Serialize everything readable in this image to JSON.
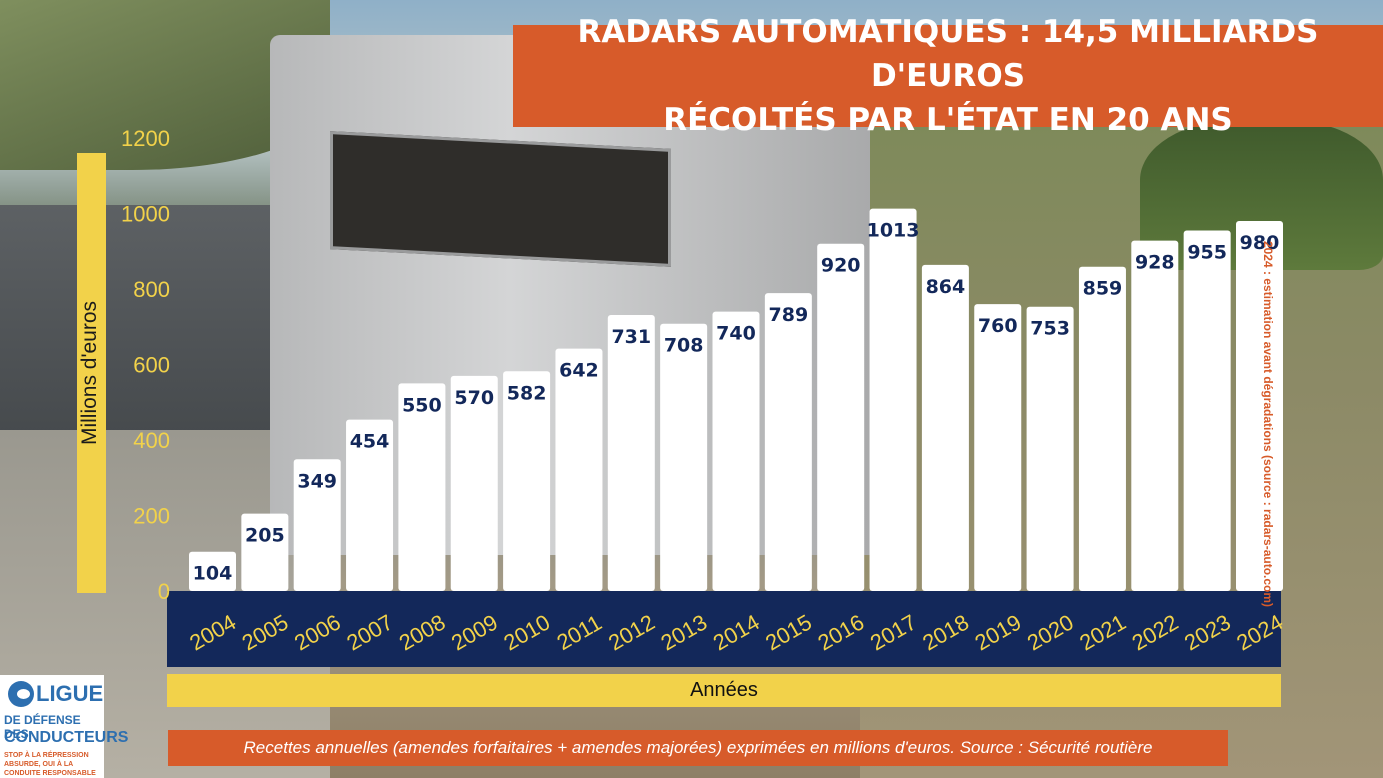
{
  "title": {
    "line1": "RADARS AUTOMATIQUES : 14,5 MILLIARDS D'EUROS",
    "line2": "RÉCOLTÉS PAR L'ÉTAT EN 20 ANS"
  },
  "caption": "Recettes annuelles (amendes forfaitaires + amendes majorées) exprimées en millions d'euros. Source : Sécurité routière",
  "side_note": "2024 : estimation avant dégradations (source : radars-auto.com)",
  "logo": {
    "line1": "LIGUE",
    "line2": "DE DÉFENSE DES",
    "line3": "CONDUCTEURS",
    "tagline": "STOP À LA RÉPRESSION ABSURDE, OUI À LA CONDUITE RESPONSABLE"
  },
  "colors": {
    "accent": "#d75b2a",
    "axis_band": "#13285a",
    "axis_text": "#f2d24a",
    "bar": "#ffffff"
  },
  "chart_data": {
    "type": "bar",
    "title": "RADARS AUTOMATIQUES : 14,5 MILLIARDS D'EUROS RÉCOLTÉS PAR L'ÉTAT EN 20 ANS",
    "xlabel": "Années",
    "ylabel": "Millions d'euros",
    "ylim": [
      0,
      1200
    ],
    "yticks": [
      0,
      200,
      400,
      600,
      800,
      1000,
      1200
    ],
    "grid": false,
    "categories": [
      "2004",
      "2005",
      "2006",
      "2007",
      "2008",
      "2009",
      "2010",
      "2011",
      "2012",
      "2013",
      "2014",
      "2015",
      "2016",
      "2017",
      "2018",
      "2019",
      "2020",
      "2021",
      "2022",
      "2023",
      "2024"
    ],
    "values": [
      104,
      205,
      349,
      454,
      550,
      570,
      582,
      642,
      731,
      708,
      740,
      789,
      920,
      1013,
      864,
      760,
      753,
      859,
      928,
      955,
      980
    ],
    "data_labels": true
  }
}
